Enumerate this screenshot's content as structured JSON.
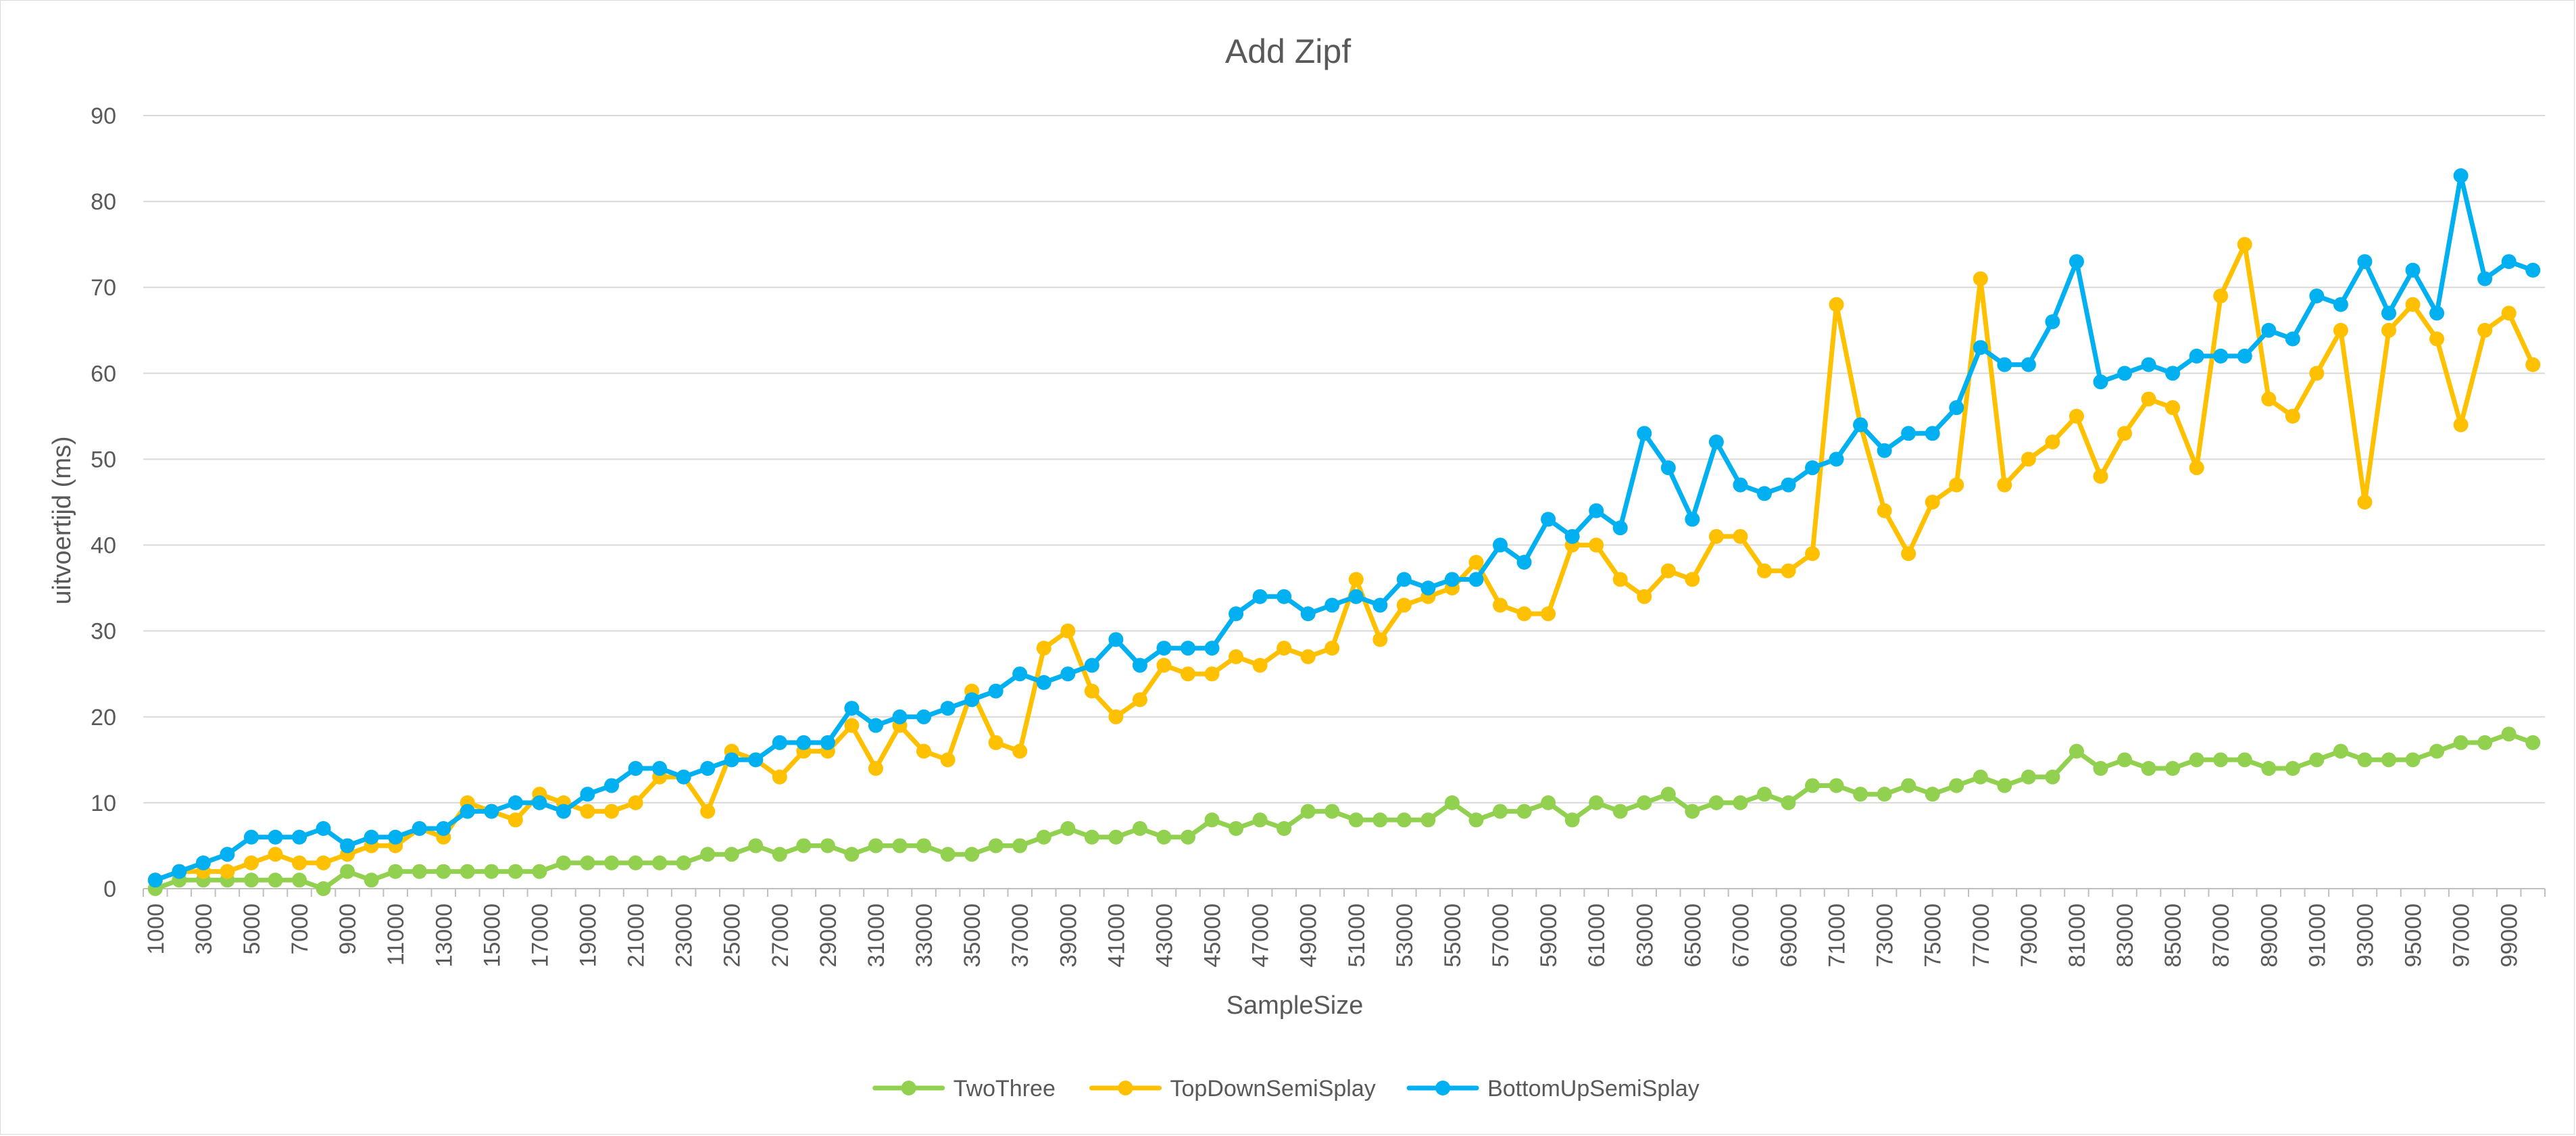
{
  "chart_data": {
    "type": "line",
    "title": "Add Zipf",
    "xlabel": "SampleSize",
    "ylabel": "uitvoertijd (ms)",
    "ylim": [
      0,
      90
    ],
    "yticks": [
      0,
      10,
      20,
      30,
      40,
      50,
      60,
      70,
      80,
      90
    ],
    "grid": "horizontal",
    "legend": "bottom",
    "x": [
      1000,
      2000,
      3000,
      4000,
      5000,
      6000,
      7000,
      8000,
      9000,
      10000,
      11000,
      12000,
      13000,
      14000,
      15000,
      16000,
      17000,
      18000,
      19000,
      20000,
      21000,
      22000,
      23000,
      24000,
      25000,
      26000,
      27000,
      28000,
      29000,
      30000,
      31000,
      32000,
      33000,
      34000,
      35000,
      36000,
      37000,
      38000,
      39000,
      40000,
      41000,
      42000,
      43000,
      44000,
      45000,
      46000,
      47000,
      48000,
      49000,
      50000,
      51000,
      52000,
      53000,
      54000,
      55000,
      56000,
      57000,
      58000,
      59000,
      60000,
      61000,
      62000,
      63000,
      64000,
      65000,
      66000,
      67000,
      68000,
      69000,
      70000,
      71000,
      72000,
      73000,
      74000,
      75000,
      76000,
      77000,
      78000,
      79000,
      80000,
      81000,
      82000,
      83000,
      84000,
      85000,
      86000,
      87000,
      88000,
      89000,
      90000,
      91000,
      92000,
      93000,
      94000,
      95000,
      96000,
      97000,
      98000,
      99000,
      100000
    ],
    "xtick_labels": [
      "1000",
      "3000",
      "5000",
      "7000",
      "9000",
      "11000",
      "13000",
      "15000",
      "17000",
      "19000",
      "21000",
      "23000",
      "25000",
      "27000",
      "29000",
      "31000",
      "33000",
      "35000",
      "37000",
      "39000",
      "41000",
      "43000",
      "45000",
      "47000",
      "49000",
      "51000",
      "53000",
      "55000",
      "57000",
      "59000",
      "61000",
      "63000",
      "65000",
      "67000",
      "69000",
      "71000",
      "73000",
      "75000",
      "77000",
      "79000",
      "81000",
      "83000",
      "85000",
      "87000",
      "89000",
      "91000",
      "93000",
      "95000",
      "97000",
      "99000"
    ],
    "series": [
      {
        "name": "TwoThree",
        "color": "#92d050",
        "values": [
          0,
          1,
          1,
          1,
          1,
          1,
          1,
          0,
          2,
          1,
          2,
          2,
          2,
          2,
          2,
          2,
          2,
          3,
          3,
          3,
          3,
          3,
          3,
          4,
          4,
          5,
          4,
          5,
          5,
          4,
          5,
          5,
          5,
          4,
          4,
          5,
          5,
          6,
          7,
          6,
          6,
          7,
          6,
          6,
          8,
          7,
          8,
          7,
          9,
          9,
          8,
          8,
          8,
          8,
          10,
          8,
          9,
          9,
          10,
          8,
          10,
          9,
          10,
          11,
          9,
          10,
          10,
          11,
          10,
          12,
          12,
          11,
          11,
          12,
          11,
          12,
          13,
          12,
          13,
          13,
          16,
          14,
          15,
          14,
          14,
          15,
          15,
          15,
          14,
          14,
          15,
          16,
          15,
          15,
          15,
          16,
          17,
          17,
          18,
          17
        ]
      },
      {
        "name": "TopDownSemiSplay",
        "color": "#ffc000",
        "values": [
          1,
          2,
          2,
          2,
          3,
          4,
          3,
          3,
          4,
          5,
          5,
          7,
          6,
          10,
          9,
          8,
          11,
          10,
          9,
          9,
          10,
          13,
          13,
          9,
          16,
          15,
          13,
          16,
          16,
          19,
          14,
          19,
          16,
          15,
          23,
          17,
          16,
          28,
          30,
          23,
          20,
          22,
          26,
          25,
          25,
          27,
          26,
          28,
          27,
          28,
          36,
          29,
          33,
          34,
          35,
          38,
          33,
          32,
          32,
          40,
          40,
          36,
          34,
          37,
          36,
          41,
          41,
          37,
          37,
          39,
          68,
          54,
          44,
          39,
          45,
          47,
          71,
          47,
          50,
          52,
          55,
          48,
          53,
          57,
          56,
          49,
          69,
          75,
          57,
          55,
          60,
          65,
          45,
          65,
          68,
          64,
          54,
          65,
          67,
          61
        ]
      },
      {
        "name": "BottomUpSemiSplay",
        "color": "#00b0f0",
        "values": [
          1,
          2,
          3,
          4,
          6,
          6,
          6,
          7,
          5,
          6,
          6,
          7,
          7,
          9,
          9,
          10,
          10,
          9,
          11,
          12,
          14,
          14,
          13,
          14,
          15,
          15,
          17,
          17,
          17,
          21,
          19,
          20,
          20,
          21,
          22,
          23,
          25,
          24,
          25,
          26,
          29,
          26,
          28,
          28,
          28,
          32,
          34,
          34,
          32,
          33,
          34,
          33,
          36,
          35,
          36,
          36,
          40,
          38,
          43,
          41,
          44,
          42,
          53,
          49,
          43,
          52,
          47,
          46,
          47,
          49,
          50,
          54,
          51,
          53,
          53,
          56,
          63,
          61,
          61,
          66,
          73,
          59,
          60,
          61,
          60,
          62,
          62,
          62,
          65,
          64,
          69,
          68,
          73,
          67,
          72,
          67,
          83,
          71,
          73,
          72
        ]
      }
    ]
  }
}
